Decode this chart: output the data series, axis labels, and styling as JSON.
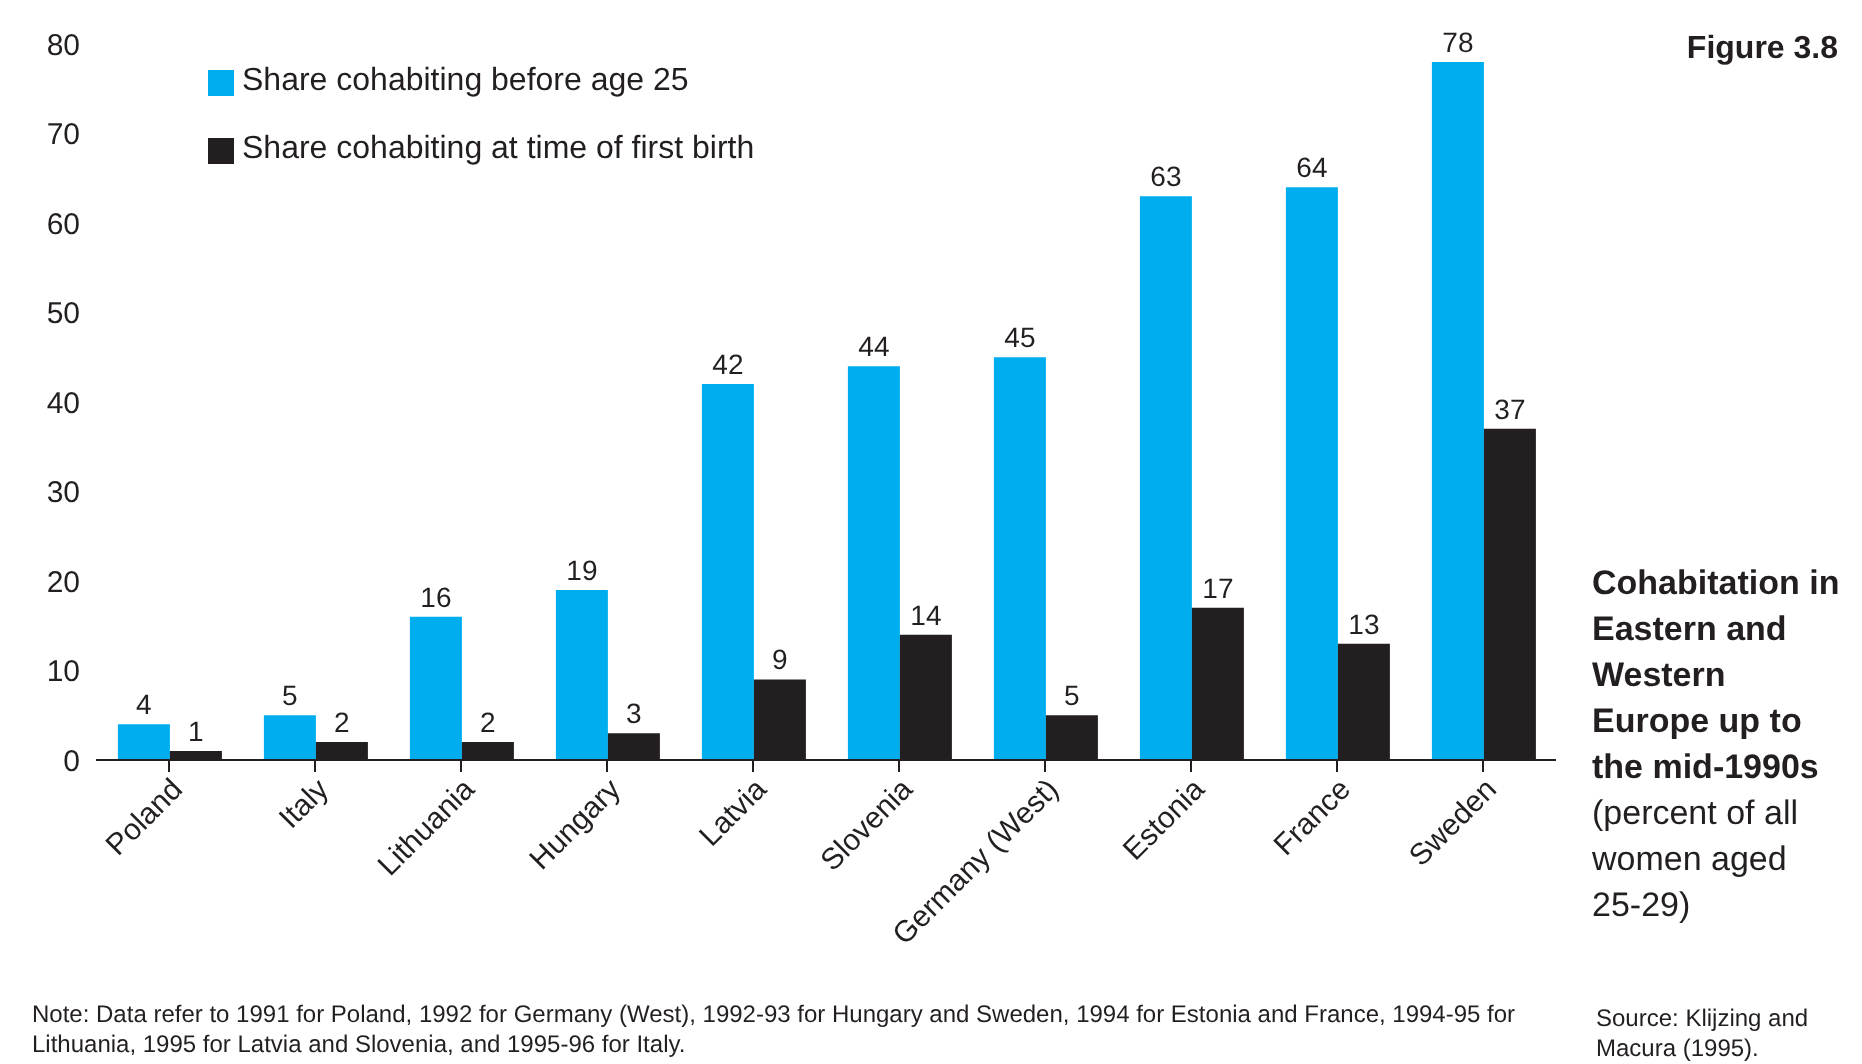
{
  "chart_data": {
    "type": "bar",
    "title": "Cohabitation in Eastern and Western Europe up to the mid-1990s",
    "subtitle": "(percent of all women aged 25-29)",
    "categories": [
      "Poland",
      "Italy",
      "Lithuania",
      "Hungary",
      "Latvia",
      "Slovenia",
      "Germany (West)",
      "Estonia",
      "France",
      "Sweden"
    ],
    "series": [
      {
        "name": "Share cohabiting before age 25",
        "color": "#00aeef",
        "values": [
          4,
          5,
          16,
          19,
          42,
          44,
          45,
          63,
          64,
          78
        ]
      },
      {
        "name": "Share cohabiting at time of first birth",
        "color": "#231f20",
        "values": [
          1,
          2,
          2,
          3,
          9,
          14,
          5,
          17,
          13,
          37
        ]
      }
    ],
    "ylim": [
      0,
      80
    ],
    "yticks": [
      0,
      10,
      20,
      30,
      40,
      50,
      60,
      70,
      80
    ],
    "grid": false,
    "legend": "top left",
    "data_labels": true,
    "annotations": [
      "Figure 3.8",
      "Note: Data refer to 1991 for Poland, 1992 for Germany (West), 1992-93 for Hungary and Sweden, 1994 for Estonia and France, 1994-95 for Lithuania, 1995 for Latvia and Slovenia, and 1995-96 for Italy.",
      "Source: Klijzing and Macura (1995)."
    ]
  }
}
